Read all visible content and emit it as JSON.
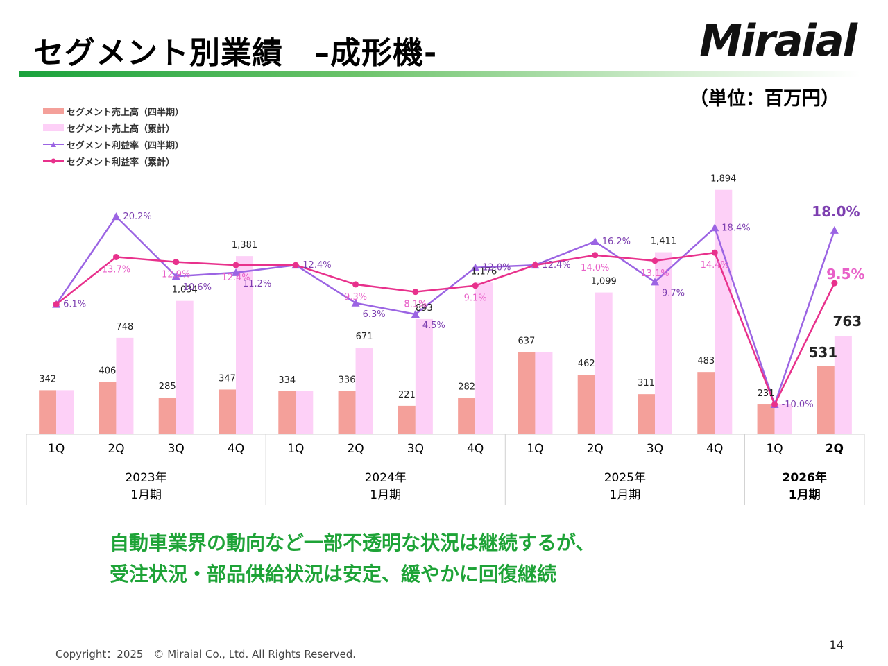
{
  "slide": {
    "title": "セグメント別業績　–成形機-",
    "logo": "Miraial",
    "unit": "（単位：百万円）",
    "message_line1": "自動車業界の動向など一部不透明な状況は継続するが、",
    "message_line2": "受注状況・部品供給状況は安定、緩やかに回復継続",
    "copyright": "Copyright：2025　© Miraial Co., Ltd. All Rights Reserved.",
    "page_number": "14"
  },
  "chart_data": {
    "type": "bar",
    "categories": [
      "1Q",
      "2Q",
      "3Q",
      "4Q",
      "1Q",
      "2Q",
      "3Q",
      "4Q",
      "1Q",
      "2Q",
      "3Q",
      "4Q",
      "1Q",
      "2Q"
    ],
    "periods": [
      {
        "label_line1": "2023年",
        "label_line2": "1月期",
        "span": 4,
        "bold": false
      },
      {
        "label_line1": "2024年",
        "label_line2": "1月期",
        "span": 4,
        "bold": false
      },
      {
        "label_line1": "2025年",
        "label_line2": "1月期",
        "span": 4,
        "bold": false
      },
      {
        "label_line1": "2026年",
        "label_line2": "1月期",
        "span": 2,
        "bold": true
      }
    ],
    "series": [
      {
        "name": "セグメント売上高（四半期）",
        "kind": "bar",
        "color": "#f4a09a",
        "values": [
          342,
          406,
          285,
          347,
          334,
          336,
          221,
          282,
          637,
          462,
          311,
          483,
          231,
          531
        ],
        "labels": [
          "342",
          "406",
          "285",
          "347",
          "334",
          "336",
          "221",
          "282",
          "637",
          "462",
          "311",
          "483",
          "231",
          "531"
        ]
      },
      {
        "name": "セグメント売上高（累計）",
        "kind": "bar",
        "color": "#fdd0f7",
        "values": [
          342,
          748,
          1034,
          1381,
          334,
          671,
          893,
          1176,
          637,
          1099,
          1411,
          1894,
          231,
          763
        ],
        "labels": [
          "",
          "748",
          "1,034",
          "1,381",
          "",
          "671",
          "893",
          "1,176",
          "",
          "1,099",
          "1,411",
          "1,894",
          "",
          "763"
        ]
      },
      {
        "name": "セグメント利益率（四半期）",
        "kind": "line",
        "marker": "triangle",
        "color": "#9b64e3",
        "label_color": "#7d3fb0",
        "values": [
          6.1,
          20.2,
          10.6,
          11.2,
          12.4,
          6.3,
          4.5,
          12.0,
          12.4,
          16.2,
          9.7,
          18.4,
          -10.0,
          18.0
        ],
        "labels": [
          "6.1%",
          "20.2%",
          "10.6%",
          "11.2%",
          "12.4%",
          "6.3%",
          "4.5%",
          "12.0%",
          "12.4%",
          "16.2%",
          "9.7%",
          "18.4%",
          "-10.0%",
          "18.0%"
        ]
      },
      {
        "name": "セグメント利益率（累計）",
        "kind": "line",
        "marker": "circle",
        "color": "#e8318c",
        "label_color": "#e860c8",
        "values": [
          6.1,
          13.7,
          12.9,
          12.4,
          12.4,
          9.3,
          8.1,
          9.1,
          12.4,
          14.0,
          13.1,
          14.4,
          -10.0,
          9.5
        ],
        "labels": [
          "",
          "13.7%",
          "12.9%",
          "12.4%",
          "",
          "9.3%",
          "8.1%",
          "9.1%",
          "",
          "14.0%",
          "13.1%",
          "14.4%",
          "",
          "9.5%"
        ]
      }
    ],
    "sales_range": [
      0,
      2000
    ],
    "margin_range": [
      -10,
      22
    ],
    "grid": false,
    "legend_position": "top-left"
  }
}
